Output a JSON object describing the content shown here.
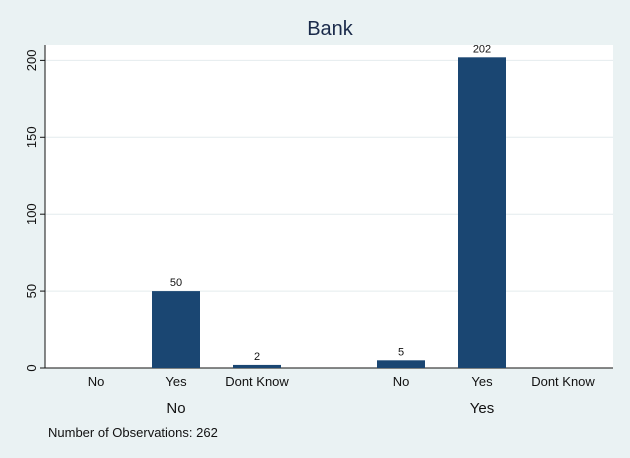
{
  "chart_data": {
    "type": "bar",
    "title": "Bank",
    "xlabel": "",
    "ylabel": "",
    "ylim": [
      0,
      210
    ],
    "yticks": [
      0,
      50,
      100,
      150,
      200
    ],
    "grid": true,
    "bar_color": "#1a4672",
    "groups": [
      {
        "label": "No",
        "categories": [
          "No",
          "Yes",
          "Dont Know"
        ],
        "values": [
          0,
          50,
          2
        ],
        "value_labels": [
          "",
          "50",
          "2"
        ]
      },
      {
        "label": "Yes",
        "categories": [
          "No",
          "Yes",
          "Dont Know"
        ],
        "values": [
          5,
          202,
          0
        ],
        "value_labels": [
          "5",
          "202",
          ""
        ]
      }
    ],
    "note": "Number of Observations: 262"
  }
}
